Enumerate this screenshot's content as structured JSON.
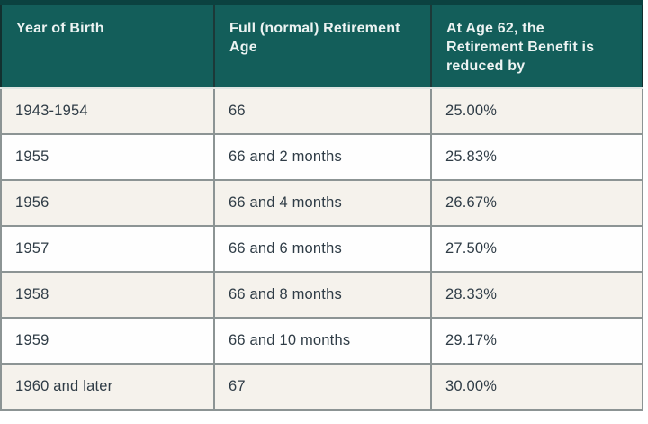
{
  "table": {
    "headers": [
      "Year of Birth",
      "Full (normal) Retirement Age",
      "At Age 62, the Retirement Benefit is reduced by"
    ],
    "rows": [
      [
        "1943-1954",
        "66",
        "25.00%"
      ],
      [
        "1955",
        "66 and 2 months",
        "25.83%"
      ],
      [
        "1956",
        "66 and 4 months",
        "26.67%"
      ],
      [
        "1957",
        "66 and 6 months",
        "27.50%"
      ],
      [
        "1958",
        "66 and 8 months",
        "28.33%"
      ],
      [
        "1959",
        "66 and 10 months",
        "29.17%"
      ],
      [
        "1960 and later",
        "67",
        "30.00%"
      ]
    ]
  },
  "chart_data": {
    "type": "table",
    "title": "",
    "columns": [
      "Year of Birth",
      "Full (normal) Retirement Age",
      "At Age 62, the Retirement Benefit is reduced by"
    ],
    "rows": [
      [
        "1943-1954",
        "66",
        "25.00%"
      ],
      [
        "1955",
        "66 and 2 months",
        "25.83%"
      ],
      [
        "1956",
        "66 and 4 months",
        "26.67%"
      ],
      [
        "1957",
        "66 and 6 months",
        "27.50%"
      ],
      [
        "1958",
        "66 and 8 months",
        "28.33%"
      ],
      [
        "1959",
        "66 and 10 months",
        "29.17%"
      ],
      [
        "1960 and later",
        "67",
        "30.00%"
      ]
    ],
    "reduction_percent_values": [
      25.0,
      25.83,
      26.67,
      27.5,
      28.33,
      29.17,
      30.0
    ],
    "layout": {
      "header_position": "top",
      "zebra_striping": true
    }
  },
  "colors": {
    "header_bg": "#135E5A",
    "header_top_strip": "#0B4240",
    "header_text": "#ECF3F2",
    "header_divider": "#1C3938",
    "row_alt_bg": "#F5F2EC",
    "row_bg": "#FEFEFE",
    "grid_border": "#8C9494",
    "body_text": "#2F3C46"
  }
}
